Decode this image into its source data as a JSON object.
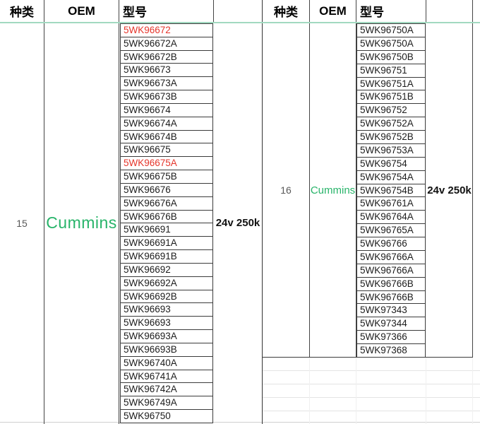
{
  "colors": {
    "accent_green_line": "#a2d9c0",
    "oem_green": "#28b46a",
    "highlight_red": "#e5352b",
    "cell_border": "#3b3b3b",
    "column_line": "#444444",
    "faint_grid": "#e4e4e4"
  },
  "left_table": {
    "header": {
      "type": "种类",
      "oem": "OEM",
      "model": "型号"
    },
    "type_value": "15",
    "oem_value": "Cummins",
    "spec_value": "24v 250k",
    "models": [
      {
        "text": "5WK96672",
        "red": true
      },
      {
        "text": "5WK96672A",
        "red": false
      },
      {
        "text": "5WK96672B",
        "red": false
      },
      {
        "text": "5WK96673",
        "red": false
      },
      {
        "text": "5WK96673A",
        "red": false
      },
      {
        "text": "5WK96673B",
        "red": false
      },
      {
        "text": "5WK96674",
        "red": false
      },
      {
        "text": "5WK96674A",
        "red": false
      },
      {
        "text": "5WK96674B",
        "red": false
      },
      {
        "text": "5WK96675",
        "red": false
      },
      {
        "text": "5WK96675A",
        "red": true
      },
      {
        "text": "5WK96675B",
        "red": false
      },
      {
        "text": "5WK96676",
        "red": false
      },
      {
        "text": "5WK96676A",
        "red": false
      },
      {
        "text": "5WK96676B",
        "red": false
      },
      {
        "text": "5WK96691",
        "red": false
      },
      {
        "text": "5WK96691A",
        "red": false
      },
      {
        "text": "5WK96691B",
        "red": false
      },
      {
        "text": "5WK96692",
        "red": false
      },
      {
        "text": "5WK96692A",
        "red": false
      },
      {
        "text": "5WK96692B",
        "red": false
      },
      {
        "text": "5WK96693",
        "red": false
      },
      {
        "text": "5WK96693",
        "red": false
      },
      {
        "text": "5WK96693A",
        "red": false
      },
      {
        "text": "5WK96693B",
        "red": false
      },
      {
        "text": "5WK96740A",
        "red": false
      },
      {
        "text": "5WK96741A",
        "red": false
      },
      {
        "text": "5WK96742A",
        "red": false
      },
      {
        "text": "5WK96749A",
        "red": false
      },
      {
        "text": "5WK96750",
        "red": false
      }
    ]
  },
  "right_table": {
    "header": {
      "type": "种类",
      "oem": "OEM",
      "model": "型号"
    },
    "type_value": "16",
    "oem_value": "Cummins",
    "spec_value": "24v 250k",
    "models": [
      {
        "text": "5WK96750A",
        "red": false
      },
      {
        "text": "5WK96750A",
        "red": false
      },
      {
        "text": "5WK96750B",
        "red": false
      },
      {
        "text": "5WK96751",
        "red": false
      },
      {
        "text": "5WK96751A",
        "red": false
      },
      {
        "text": "5WK96751B",
        "red": false
      },
      {
        "text": "5WK96752",
        "red": false
      },
      {
        "text": "5WK96752A",
        "red": false
      },
      {
        "text": "5WK96752B",
        "red": false
      },
      {
        "text": "5WK96753A",
        "red": false
      },
      {
        "text": "5WK96754",
        "red": false
      },
      {
        "text": "5WK96754A",
        "red": false
      },
      {
        "text": "5WK96754B",
        "red": false
      },
      {
        "text": "5WK96761A",
        "red": false
      },
      {
        "text": "5WK96764A",
        "red": false
      },
      {
        "text": "5WK96765A",
        "red": false
      },
      {
        "text": "5WK96766",
        "red": false
      },
      {
        "text": "5WK96766A",
        "red": false
      },
      {
        "text": "5WK96766A",
        "red": false
      },
      {
        "text": "5WK96766B",
        "red": false
      },
      {
        "text": "5WK96766B",
        "red": false
      },
      {
        "text": "5WK97343",
        "red": false
      },
      {
        "text": "5WK97344",
        "red": false
      },
      {
        "text": "5WK97366",
        "red": false
      },
      {
        "text": "5WK97368",
        "red": false
      }
    ]
  }
}
